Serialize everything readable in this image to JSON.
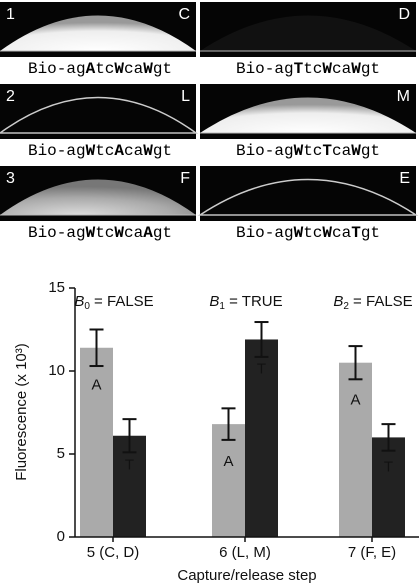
{
  "panels": [
    {
      "number": "1",
      "letter": "C",
      "caption": [
        "Bio-ag",
        "A",
        "tc",
        "W",
        "ca",
        "W",
        "gt"
      ]
    },
    {
      "letter": "D",
      "caption": [
        "Bio-ag",
        "T",
        "tc",
        "W",
        "ca",
        "W",
        "gt"
      ]
    },
    {
      "number": "2",
      "letter": "L",
      "caption": [
        "Bio-ag",
        "W",
        "tc",
        "A",
        "ca",
        "W",
        "gt"
      ]
    },
    {
      "letter": "M",
      "caption": [
        "Bio-ag",
        "W",
        "tc",
        "T",
        "ca",
        "W",
        "gt"
      ]
    },
    {
      "number": "3",
      "letter": "F",
      "caption": [
        "Bio-ag",
        "W",
        "tc",
        "W",
        "ca",
        "A",
        "gt"
      ]
    },
    {
      "letter": "E",
      "caption": [
        "Bio-ag",
        "W",
        "tc",
        "W",
        "ca",
        "T",
        "gt"
      ]
    }
  ],
  "chart_data": {
    "type": "bar",
    "categories": [
      "5 (C, D)",
      "6 (L, M)",
      "7 (F, E)"
    ],
    "series": [
      {
        "name": "A",
        "color": "#aaaaaa",
        "values": [
          11.4,
          6.8,
          10.5
        ],
        "errors": [
          1.1,
          0.95,
          1.0
        ]
      },
      {
        "name": "T",
        "color": "#222222",
        "values": [
          6.1,
          11.9,
          6.0
        ],
        "errors": [
          1.0,
          1.05,
          0.8
        ]
      }
    ],
    "ylim": [
      0,
      15
    ],
    "yticks": [
      0,
      5,
      10,
      15
    ],
    "ylabel": "Fluorescence (x 10³)",
    "xlabel": "Capture/release step",
    "annotations": [
      {
        "var": "B",
        "sub": "0",
        "text": " = FALSE"
      },
      {
        "var": "B",
        "sub": "1",
        "text": " = TRUE"
      },
      {
        "var": "B",
        "sub": "2",
        "text": " = FALSE"
      }
    ]
  }
}
